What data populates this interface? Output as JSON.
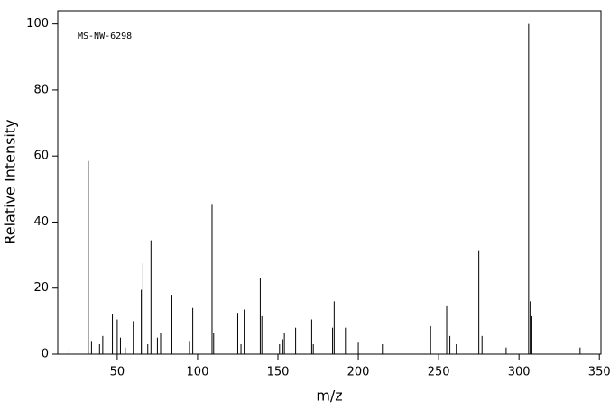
{
  "chart_data": {
    "type": "stem",
    "annotation": "MS-NW-6298",
    "x_label": "m/z",
    "y_label": "Relative Intensity",
    "x": [
      20,
      32,
      34,
      39,
      41,
      47,
      50,
      52,
      55,
      60,
      65,
      66,
      69,
      71,
      75,
      77,
      84,
      95,
      97,
      109,
      110,
      125,
      127,
      129,
      139,
      140,
      151,
      153,
      154,
      161,
      171,
      172,
      184,
      185,
      192,
      200,
      215,
      245,
      255,
      257,
      261,
      275,
      277,
      292,
      306,
      307,
      308,
      338
    ],
    "values": [
      2,
      58.5,
      4,
      3,
      5.5,
      12,
      10.5,
      5,
      2,
      10,
      19.5,
      27.5,
      3,
      34.5,
      5,
      6.5,
      18,
      4,
      14,
      45.5,
      6.5,
      12.5,
      3,
      13.5,
      23,
      11.5,
      3,
      4.5,
      6.5,
      8,
      10.5,
      3,
      8,
      16,
      8,
      3.5,
      3,
      8.5,
      14.5,
      5.5,
      3,
      31.5,
      5.5,
      2,
      100,
      16,
      11.5,
      2
    ],
    "color": "#000000",
    "xlim": [
      13,
      351
    ],
    "ylim": [
      0,
      104
    ],
    "xticks": [
      50,
      100,
      150,
      200,
      250,
      300,
      350
    ],
    "yticks": [
      0,
      20,
      40,
      60,
      80,
      100
    ]
  }
}
